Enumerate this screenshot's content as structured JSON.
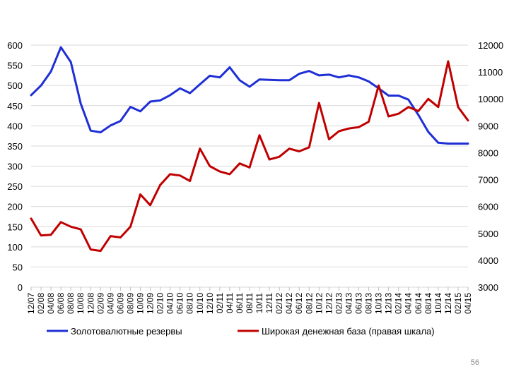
{
  "chart_data": {
    "type": "line",
    "title": "",
    "xlabel": "",
    "ylabel": "",
    "grid": true,
    "legend_position": "bottom",
    "ylim_left": [
      0,
      600
    ],
    "ylim_right": [
      3000,
      12000
    ],
    "yticks_left": [
      "0",
      "50",
      "100",
      "150",
      "200",
      "250",
      "300",
      "350",
      "400",
      "450",
      "500",
      "550",
      "600"
    ],
    "yticks_right": [
      "3000",
      "4000",
      "5000",
      "6000",
      "7000",
      "8000",
      "9000",
      "10000",
      "11000",
      "12000"
    ],
    "categories": [
      "12/07",
      "02/08",
      "04/08",
      "06/08",
      "08/08",
      "10/08",
      "12/08",
      "02/09",
      "04/09",
      "06/09",
      "08/09",
      "10/09",
      "12/09",
      "02/10",
      "04/10",
      "06/10",
      "08/10",
      "10/10",
      "12/10",
      "02/11",
      "04/11",
      "06/11",
      "08/11",
      "10/11",
      "12/11",
      "02/12",
      "04/12",
      "06/12",
      "08/12",
      "10/12",
      "12/12",
      "02/13",
      "04/13",
      "06/13",
      "08/13",
      "10/13",
      "12/13",
      "02/14",
      "04/14",
      "06/14",
      "08/14",
      "10/14",
      "12/14",
      "02/15",
      "04/15"
    ],
    "series": [
      {
        "name": "Золотовалютные резервы",
        "axis": "left",
        "color": "#1f2fd6",
        "values": [
          476,
          500,
          535,
          595,
          558,
          455,
          388,
          384,
          401,
          412,
          447,
          436,
          460,
          463,
          476,
          493,
          481,
          503,
          524,
          520,
          545,
          513,
          497,
          515,
          514,
          513,
          513,
          529,
          536,
          525,
          527,
          520,
          525,
          520,
          510,
          493,
          475,
          475,
          465,
          427,
          385,
          358,
          356,
          356,
          356
        ]
      },
      {
        "name": "Широкая денежная база (правая шкала)",
        "axis": "right",
        "color": "#c00000",
        "values": [
          5550,
          4920,
          4950,
          5420,
          5250,
          5150,
          4400,
          4350,
          4900,
          4850,
          5250,
          6450,
          6050,
          6800,
          7200,
          7150,
          6950,
          8150,
          7500,
          7300,
          7200,
          7600,
          7450,
          8650,
          7750,
          7850,
          8150,
          8050,
          8200,
          9850,
          8500,
          8800,
          8900,
          8950,
          9150,
          10500,
          9350,
          9450,
          9700,
          9550,
          10000,
          9700,
          11400,
          9700,
          9200
        ]
      }
    ]
  },
  "page_number": "56"
}
